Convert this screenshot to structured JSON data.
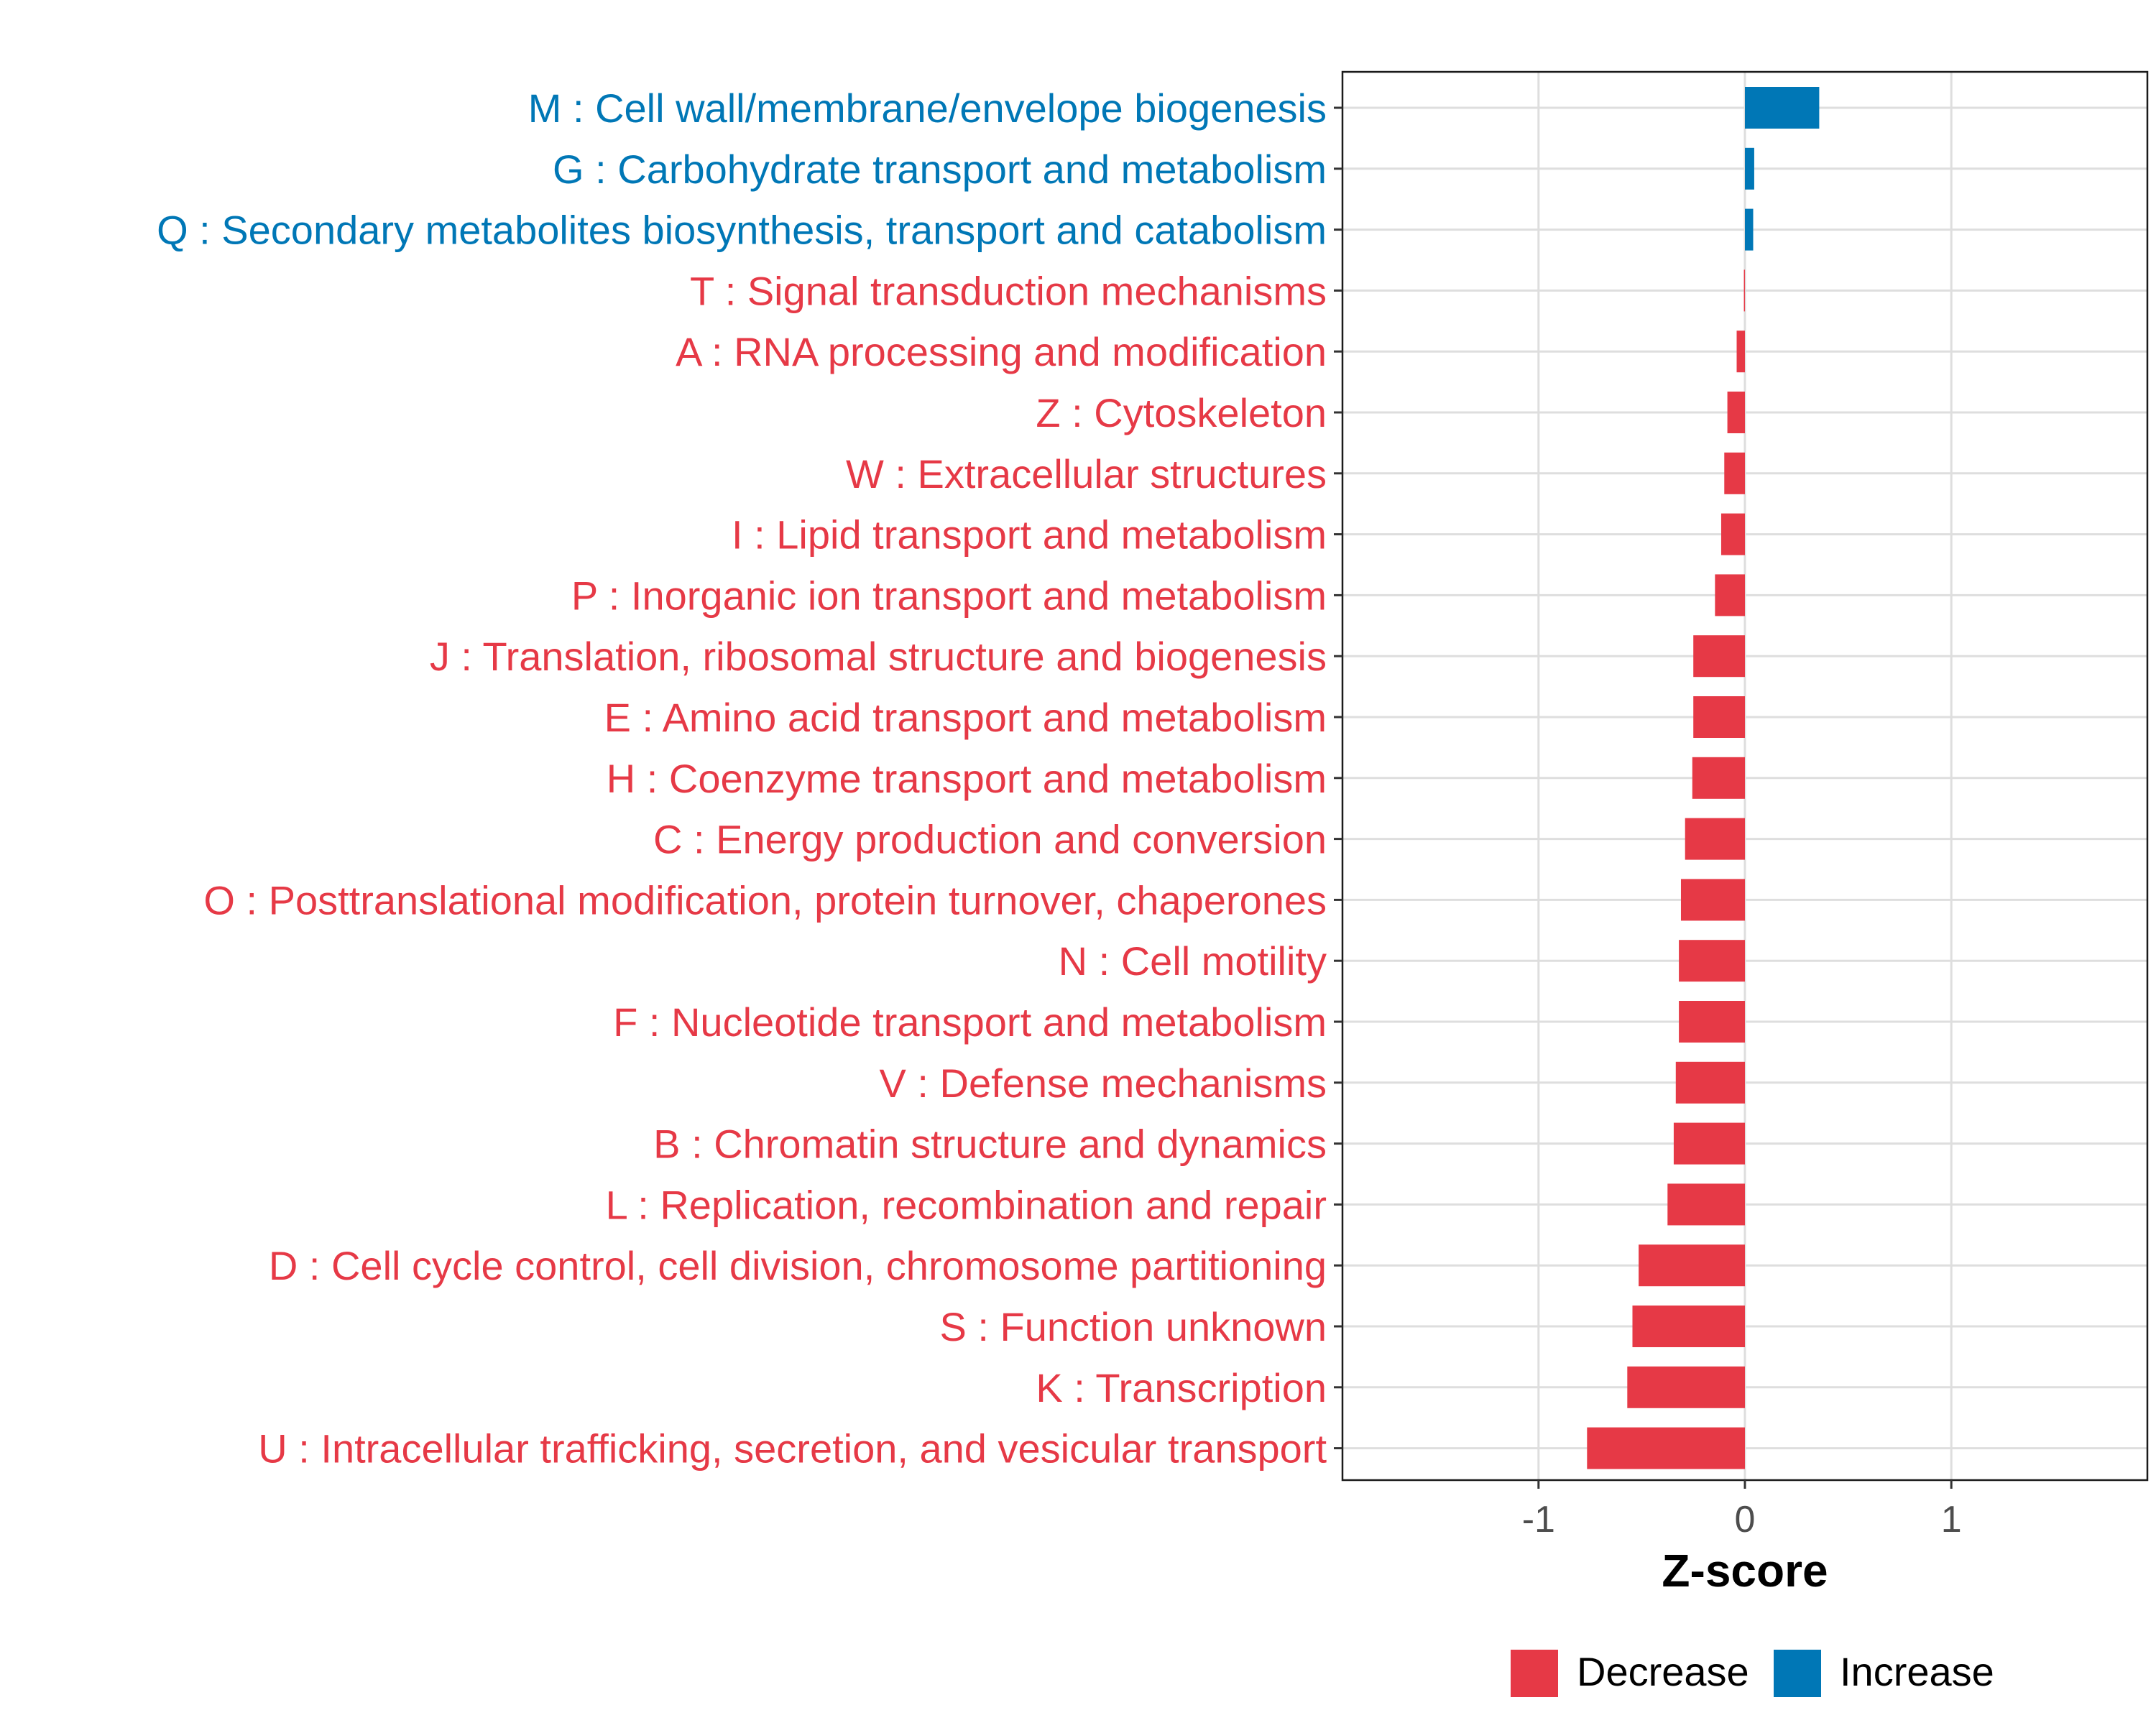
{
  "chart_data": {
    "type": "bar",
    "orientation": "horizontal",
    "title": "",
    "xlabel": "Z-score",
    "ylabel": "",
    "xlim": [
      -1.95,
      1.95
    ],
    "xticks": [
      -1,
      0,
      1
    ],
    "xtick_labels": [
      "-1",
      "0",
      "1"
    ],
    "grid": true,
    "legend_position": "bottom",
    "colors": {
      "Decrease": "#E63946",
      "Increase": "#0077B6"
    },
    "legend": [
      {
        "label": "Decrease",
        "color": "#E63946"
      },
      {
        "label": "Increase",
        "color": "#0077B6"
      }
    ],
    "categories": [
      {
        "label": "M : Cell wall/membrane/envelope biogenesis",
        "value": 0.36,
        "direction": "Increase"
      },
      {
        "label": "G : Carbohydrate transport and metabolism",
        "value": 0.045,
        "direction": "Increase"
      },
      {
        "label": "Q : Secondary metabolites biosynthesis, transport and catabolism",
        "value": 0.04,
        "direction": "Increase"
      },
      {
        "label": "T : Signal transduction mechanisms",
        "value": -0.005,
        "direction": "Decrease"
      },
      {
        "label": "A : RNA processing and modification",
        "value": -0.04,
        "direction": "Decrease"
      },
      {
        "label": "Z : Cytoskeleton",
        "value": -0.085,
        "direction": "Decrease"
      },
      {
        "label": "W : Extracellular structures",
        "value": -0.1,
        "direction": "Decrease"
      },
      {
        "label": "I : Lipid transport and metabolism",
        "value": -0.115,
        "direction": "Decrease"
      },
      {
        "label": "P : Inorganic ion transport and metabolism",
        "value": -0.145,
        "direction": "Decrease"
      },
      {
        "label": "J : Translation, ribosomal structure and biogenesis",
        "value": -0.25,
        "direction": "Decrease"
      },
      {
        "label": "E : Amino acid transport and metabolism",
        "value": -0.25,
        "direction": "Decrease"
      },
      {
        "label": "H : Coenzyme transport and metabolism",
        "value": -0.255,
        "direction": "Decrease"
      },
      {
        "label": "C : Energy production and conversion",
        "value": -0.29,
        "direction": "Decrease"
      },
      {
        "label": "O : Posttranslational modification, protein turnover, chaperones",
        "value": -0.31,
        "direction": "Decrease"
      },
      {
        "label": "N : Cell motility",
        "value": -0.32,
        "direction": "Decrease"
      },
      {
        "label": "F : Nucleotide transport and metabolism",
        "value": -0.32,
        "direction": "Decrease"
      },
      {
        "label": "V : Defense mechanisms",
        "value": -0.335,
        "direction": "Decrease"
      },
      {
        "label": "B : Chromatin structure and dynamics",
        "value": -0.345,
        "direction": "Decrease"
      },
      {
        "label": "L : Replication, recombination and repair",
        "value": -0.375,
        "direction": "Decrease"
      },
      {
        "label": "D : Cell cycle control, cell division, chromosome partitioning",
        "value": -0.515,
        "direction": "Decrease"
      },
      {
        "label": "S : Function unknown",
        "value": -0.545,
        "direction": "Decrease"
      },
      {
        "label": "K : Transcription",
        "value": -0.57,
        "direction": "Decrease"
      },
      {
        "label": "U : Intracellular trafficking, secretion, and vesicular transport",
        "value": -0.765,
        "direction": "Decrease"
      }
    ]
  }
}
